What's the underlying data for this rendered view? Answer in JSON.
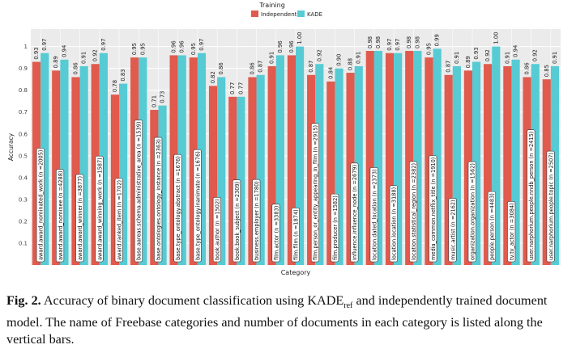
{
  "chart_data": {
    "type": "bar",
    "legend_title": "Training",
    "legend_position": "top-center",
    "ylabel": "Accuracy",
    "xlabel": "Category",
    "ylim": [
      0,
      1.08
    ],
    "yticks": [
      "0.1",
      "0.2",
      "0.3",
      "0.4",
      "0.5",
      "0.6",
      "0.7",
      "0.8",
      "0.9",
      "1"
    ],
    "grid": true,
    "colors": {
      "Independent": "#e05a4d",
      "KADE": "#56cbd4",
      "plot_bg": "#ebebeb"
    },
    "series": [
      {
        "name": "Independent",
        "values": [
          0.93,
          0.89,
          0.86,
          0.92,
          0.78,
          0.95,
          0.71,
          0.96,
          0.95,
          0.82,
          0.77,
          0.86,
          0.91,
          0.96,
          0.87,
          0.84,
          0.88,
          0.98,
          0.97,
          0.98,
          0.95,
          0.87,
          0.89,
          0.92,
          0.91,
          0.86,
          0.85
        ],
        "labels": [
          "0.93",
          "0.89",
          "0.86",
          "0.92",
          "0.78",
          "0.95",
          "0.71",
          "0.96",
          "0.95",
          "0.82",
          "0.77",
          "0.86",
          "0.91",
          "0.96",
          "0.87",
          "0.84",
          "0.88",
          "0.98",
          "0.97",
          "0.98",
          "0.95",
          "0.87",
          "0.89",
          "0.92",
          "0.91",
          "0.86",
          "0.85"
        ]
      },
      {
        "name": "KADE",
        "values": [
          0.97,
          0.94,
          0.91,
          0.97,
          0.83,
          0.95,
          0.73,
          0.96,
          0.97,
          0.86,
          0.77,
          0.87,
          0.96,
          1.0,
          0.92,
          0.9,
          0.91,
          0.98,
          0.97,
          0.98,
          0.99,
          0.91,
          0.93,
          1.0,
          0.94,
          0.92,
          0.91
        ],
        "labels": [
          "0.97",
          "0.94",
          "0.91",
          "0.97",
          "0.83",
          "0.95",
          "0.73",
          "0.96",
          "0.97",
          "0.86",
          "0.77",
          "0.87",
          "0.96",
          "1.00",
          "0.92",
          "0.90",
          "0.91",
          "0.98",
          "0.97",
          "0.98",
          "0.99",
          "0.91",
          "0.93",
          "1.00",
          "0.94",
          "0.92",
          "0.91"
        ]
      }
    ],
    "categories": [
      {
        "name": "award.award_nominated_work",
        "n": "2005"
      },
      {
        "name": "award.award_nominee",
        "n": "4288"
      },
      {
        "name": "award.award_winner",
        "n": "3877"
      },
      {
        "name": "award.award_winning_work",
        "n": "1587"
      },
      {
        "name": "award.ranked_item",
        "n": "1702"
      },
      {
        "name": "base.aareas.schema.administrative_area",
        "n": "1539"
      },
      {
        "name": "base.ontologies.ontology_instance",
        "n": "2363"
      },
      {
        "name": "base.type_ontology.abstract",
        "n": "1676"
      },
      {
        "name": "base.type_ontology.inanimate",
        "n": "1676"
      },
      {
        "name": "book.author",
        "n": "1502"
      },
      {
        "name": "book.book_subject",
        "n": "2309"
      },
      {
        "name": "business.employer",
        "n": "1780"
      },
      {
        "name": "film.actor",
        "n": "3383"
      },
      {
        "name": "film.film",
        "n": "1874"
      },
      {
        "name": "film.person_or_entity_appearing_in_film",
        "n": "2915"
      },
      {
        "name": "film.producer",
        "n": "1582"
      },
      {
        "name": "influence.influence_node",
        "n": "2679"
      },
      {
        "name": "location.dated_location",
        "n": "2373"
      },
      {
        "name": "location.location",
        "n": "3188"
      },
      {
        "name": "location.statistical_region",
        "n": "2382"
      },
      {
        "name": "media_common.netflix_title",
        "n": "1910"
      },
      {
        "name": "music.artist",
        "n": "2162"
      },
      {
        "name": "organization.organization",
        "n": "1562"
      },
      {
        "name": "people.person",
        "n": "4483"
      },
      {
        "name": "tv.tv_actor",
        "n": "3084"
      },
      {
        "name": "user.narphorium.people.nndb_person",
        "n": "2415"
      },
      {
        "name": "user.narphorium.people.topic",
        "n": "2507"
      }
    ]
  },
  "caption": {
    "fig_label": "Fig. 2.",
    "text_before_sub": " Accuracy of binary document classification using KADE",
    "subscript": "ref",
    "text_after_sub": " and independently trained document model. The name of Freebase categories and number of documents in each category is listed along the vertical bars."
  }
}
